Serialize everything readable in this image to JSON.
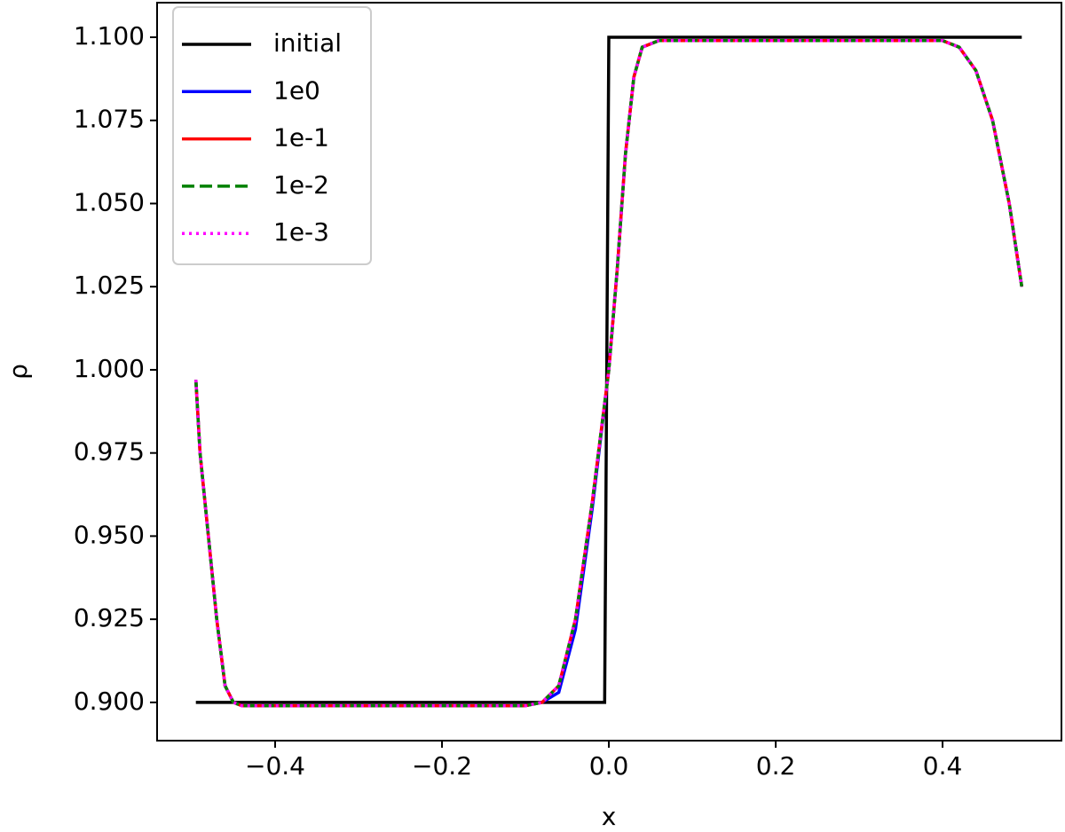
{
  "chart_data": {
    "type": "line",
    "xlabel": "x",
    "ylabel": "ρ",
    "xlim": [
      -0.5415,
      0.5425
    ],
    "ylim": [
      0.8885,
      1.1104
    ],
    "xticks": [
      {
        "value": -0.4,
        "label": "−0.4"
      },
      {
        "value": -0.2,
        "label": "−0.2"
      },
      {
        "value": 0,
        "label": "0.0"
      },
      0.2,
      0.4
    ],
    "yticks": [
      {
        "value": 0.9,
        "label": "0.900"
      },
      {
        "value": 0.925,
        "label": "0.925"
      },
      {
        "value": 0.95,
        "label": "0.950"
      },
      {
        "value": 0.975,
        "label": "0.975"
      },
      {
        "value": 1.0,
        "label": "1.000"
      },
      {
        "value": 1.025,
        "label": "1.025"
      },
      {
        "value": 1.05,
        "label": "1.050"
      },
      {
        "value": 1.075,
        "label": "1.075"
      },
      {
        "value": 1.1,
        "label": "1.100"
      }
    ],
    "legend": "upper left",
    "series": [
      {
        "name": "initial",
        "color": "#000000",
        "linestyle": "solid",
        "x": [
          -0.495,
          -0.005,
          0.0,
          0.495
        ],
        "values": [
          0.9,
          0.9,
          1.1,
          1.1
        ]
      },
      {
        "name": "1e0",
        "color": "#0000ff",
        "linestyle": "solid",
        "x": [
          -0.495,
          -0.49,
          -0.48,
          -0.47,
          -0.46,
          -0.45,
          -0.44,
          -0.3,
          -0.1,
          -0.08,
          -0.06,
          -0.04,
          -0.02,
          0.0,
          0.01,
          0.02,
          0.03,
          0.04,
          0.06,
          0.3,
          0.4,
          0.42,
          0.44,
          0.46,
          0.48,
          0.495
        ],
        "values": [
          0.997,
          0.975,
          0.95,
          0.925,
          0.905,
          0.9,
          0.899,
          0.899,
          0.899,
          0.9,
          0.903,
          0.922,
          0.958,
          1.0,
          1.03,
          1.065,
          1.088,
          1.097,
          1.099,
          1.099,
          1.099,
          1.097,
          1.09,
          1.075,
          1.05,
          1.025
        ]
      },
      {
        "name": "1e-1",
        "color": "#ff0000",
        "linestyle": "solid",
        "x": [
          -0.495,
          -0.49,
          -0.48,
          -0.47,
          -0.46,
          -0.45,
          -0.44,
          -0.3,
          -0.1,
          -0.08,
          -0.06,
          -0.04,
          -0.02,
          0.0,
          0.01,
          0.02,
          0.03,
          0.04,
          0.06,
          0.3,
          0.4,
          0.42,
          0.44,
          0.46,
          0.48,
          0.495
        ],
        "values": [
          0.997,
          0.975,
          0.95,
          0.925,
          0.905,
          0.9,
          0.899,
          0.899,
          0.899,
          0.9,
          0.905,
          0.925,
          0.96,
          1.0,
          1.03,
          1.065,
          1.088,
          1.097,
          1.099,
          1.099,
          1.099,
          1.097,
          1.09,
          1.075,
          1.05,
          1.025
        ]
      },
      {
        "name": "1e-2",
        "color": "#008000",
        "linestyle": "dashed",
        "x": [
          -0.495,
          -0.49,
          -0.48,
          -0.47,
          -0.46,
          -0.45,
          -0.44,
          -0.3,
          -0.1,
          -0.08,
          -0.06,
          -0.04,
          -0.02,
          0.0,
          0.01,
          0.02,
          0.03,
          0.04,
          0.06,
          0.3,
          0.4,
          0.42,
          0.44,
          0.46,
          0.48,
          0.495
        ],
        "values": [
          0.997,
          0.975,
          0.95,
          0.925,
          0.905,
          0.9,
          0.899,
          0.899,
          0.899,
          0.9,
          0.905,
          0.925,
          0.96,
          1.0,
          1.03,
          1.065,
          1.088,
          1.097,
          1.099,
          1.099,
          1.099,
          1.097,
          1.09,
          1.075,
          1.05,
          1.025
        ]
      },
      {
        "name": "1e-3",
        "color": "#ff00ff",
        "linestyle": "dotted",
        "x": [
          -0.495,
          -0.49,
          -0.48,
          -0.47,
          -0.46,
          -0.45,
          -0.44,
          -0.3,
          -0.1,
          -0.08,
          -0.06,
          -0.04,
          -0.02,
          0.0,
          0.01,
          0.02,
          0.03,
          0.04,
          0.06,
          0.3,
          0.4,
          0.42,
          0.44,
          0.46,
          0.48,
          0.495
        ],
        "values": [
          0.997,
          0.975,
          0.95,
          0.925,
          0.905,
          0.9,
          0.899,
          0.899,
          0.899,
          0.9,
          0.905,
          0.925,
          0.96,
          1.0,
          1.03,
          1.065,
          1.088,
          1.097,
          1.099,
          1.099,
          1.099,
          1.097,
          1.09,
          1.075,
          1.05,
          1.025
        ]
      }
    ]
  }
}
